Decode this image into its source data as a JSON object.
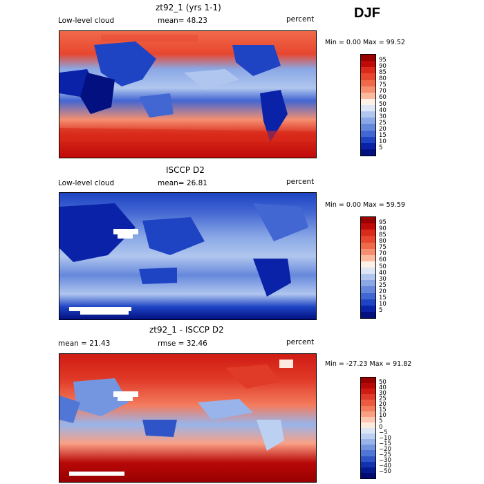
{
  "season": "DJF",
  "panels": [
    {
      "title": "zt92_1 (yrs 1-1)",
      "left_label": "Low-level cloud",
      "mean_label": "mean=  48.23",
      "units": "percent",
      "minmax": "Min =    0.00 Max =  99.52",
      "ticks": [
        "95",
        "90",
        "85",
        "80",
        "75",
        "70",
        "60",
        "50",
        "40",
        "30",
        "25",
        "20",
        "15",
        "10",
        "5"
      ],
      "colors": [
        "#990000",
        "#c00a0a",
        "#d92a1a",
        "#e8472f",
        "#f06a4a",
        "#f58f70",
        "#fbb99e",
        "#fdf0e6",
        "#dce6f7",
        "#b0c6ee",
        "#8aa8e6",
        "#6688dc",
        "#4266d2",
        "#1e44c4",
        "#0a22a8",
        "#021080"
      ]
    },
    {
      "title": "ISCCP D2",
      "left_label": "Low-level cloud",
      "mean_label": "mean=  26.81",
      "units": "percent",
      "minmax": "Min =    0.00 Max =  59.59",
      "ticks": [
        "95",
        "90",
        "85",
        "80",
        "75",
        "70",
        "60",
        "50",
        "40",
        "30",
        "25",
        "20",
        "15",
        "10",
        "5"
      ],
      "colors": [
        "#990000",
        "#c00a0a",
        "#d92a1a",
        "#e8472f",
        "#f06a4a",
        "#f58f70",
        "#fbb99e",
        "#fdf0e6",
        "#dce6f7",
        "#b0c6ee",
        "#8aa8e6",
        "#6688dc",
        "#4266d2",
        "#1e44c4",
        "#0a22a8",
        "#021080"
      ]
    },
    {
      "title": "zt92_1 - ISCCP D2",
      "left_label": "mean =  21.43",
      "mean_label": "rmse =  32.46",
      "units": "percent",
      "minmax": "Min = -27.23 Max =  91.82",
      "ticks": [
        "50",
        "40",
        "30",
        "25",
        "20",
        "15",
        "10",
        "5",
        "0",
        "−5",
        "−10",
        "−15",
        "−20",
        "−25",
        "−30",
        "−40",
        "−50"
      ],
      "colors": [
        "#990000",
        "#b80808",
        "#d01c14",
        "#e03a28",
        "#ec5a40",
        "#f47c5e",
        "#f9a084",
        "#fcc6b0",
        "#fdeadf",
        "#dce6f7",
        "#bcd0f2",
        "#98b4ea",
        "#7496e0",
        "#5076d6",
        "#2e54c8",
        "#1432b0",
        "#061a90",
        "#020c70"
      ]
    }
  ]
}
